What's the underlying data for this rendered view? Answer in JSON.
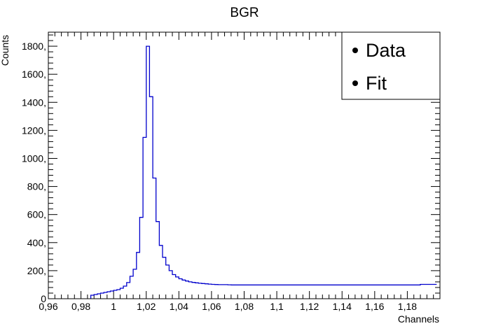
{
  "chart_data": {
    "type": "line",
    "title": "BGR",
    "xlabel": "Channels",
    "ylabel": "Counts",
    "xlim": [
      0.96,
      1.2
    ],
    "ylim": [
      0,
      1900
    ],
    "x_tick_labels": [
      "0,96",
      "0,98",
      "1",
      "1,02",
      "1,04",
      "1,06",
      "1,08",
      "1,1",
      "1,12",
      "1,14",
      "1,16",
      "1,18"
    ],
    "y_tick_labels": [
      "0",
      "200,",
      "400,",
      "600,",
      "800,",
      "1000,",
      "1200,",
      "1400,",
      "1600,",
      "1800,"
    ],
    "legend": {
      "placement": "top-right",
      "entries": [
        "Data",
        "Fit"
      ]
    },
    "series": [
      {
        "name": "Data",
        "color": "#0000cc",
        "bin_width": 0.002,
        "bins": [
          [
            0.986,
            25
          ],
          [
            0.988,
            30
          ],
          [
            0.99,
            35
          ],
          [
            0.992,
            40
          ],
          [
            0.994,
            45
          ],
          [
            0.996,
            50
          ],
          [
            0.998,
            55
          ],
          [
            1.0,
            60
          ],
          [
            1.002,
            65
          ],
          [
            1.004,
            75
          ],
          [
            1.006,
            90
          ],
          [
            1.008,
            115
          ],
          [
            1.01,
            160
          ],
          [
            1.012,
            210
          ],
          [
            1.014,
            330
          ],
          [
            1.016,
            580
          ],
          [
            1.018,
            1150
          ],
          [
            1.02,
            1800
          ],
          [
            1.022,
            1440
          ],
          [
            1.024,
            860
          ],
          [
            1.026,
            550
          ],
          [
            1.028,
            380
          ],
          [
            1.03,
            295
          ],
          [
            1.032,
            240
          ],
          [
            1.034,
            200
          ],
          [
            1.036,
            172
          ],
          [
            1.038,
            155
          ],
          [
            1.04,
            142
          ],
          [
            1.042,
            133
          ],
          [
            1.044,
            126
          ],
          [
            1.046,
            120
          ],
          [
            1.048,
            116
          ],
          [
            1.05,
            113
          ],
          [
            1.052,
            110
          ],
          [
            1.054,
            108
          ],
          [
            1.056,
            106
          ],
          [
            1.058,
            104
          ],
          [
            1.06,
            102
          ],
          [
            1.062,
            101
          ],
          [
            1.064,
            100
          ],
          [
            1.066,
            100
          ],
          [
            1.068,
            100
          ],
          [
            1.07,
            99
          ],
          [
            1.072,
            98
          ],
          [
            1.074,
            98
          ],
          [
            1.186,
            98
          ],
          [
            1.188,
            102
          ],
          [
            1.19,
            102
          ],
          [
            1.192,
            102
          ]
        ],
        "end": 1.198
      }
    ],
    "grid": false
  }
}
